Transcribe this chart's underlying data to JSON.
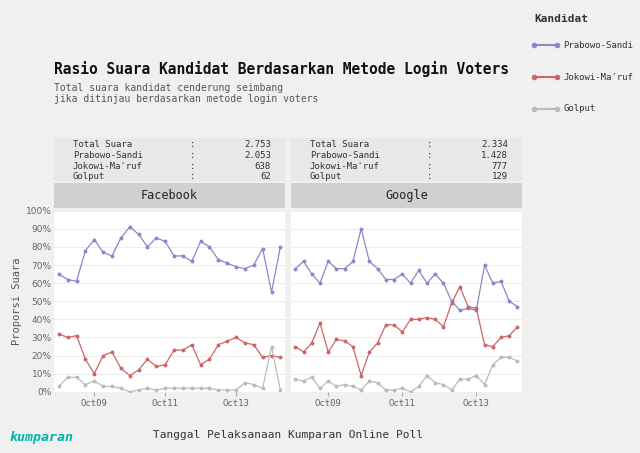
{
  "title": "Rasio Suara Kandidat Berdasarkan Metode Login Voters",
  "subtitle": "Total suara kandidat cenderung seimbang\njika ditinjau berdasarkan metode login voters",
  "xlabel": "Tanggal Pelaksanaan Kumparan Online Poll",
  "ylabel": "Proporsi Suara",
  "legend_title": "Kandidat",
  "legend_labels": [
    "Prabowo-Sandi",
    "Jokowi-Ma'ruf",
    "Golput"
  ],
  "legend_colors": [
    "#8888cc",
    "#cc6666",
    "#bbbbbb"
  ],
  "fb_label": "Facebook",
  "google_label": "Google",
  "fb_stats": {
    "Total Suara": "2.753",
    "Prabowo-Sandi": "2.053",
    "Jokowi-Ma'ruf": "638",
    "Golput": "62"
  },
  "google_stats": {
    "Total Suara": "2.334",
    "Prabowo-Sandi": "1.428",
    "Jokowi-Ma'ruf": "777",
    "Golput": "129"
  },
  "fb_prabowo": [
    65,
    62,
    61,
    78,
    84,
    77,
    75,
    85,
    91,
    87,
    80,
    85,
    83,
    75,
    75,
    72,
    83,
    80,
    73,
    71,
    69,
    68,
    70,
    79,
    55,
    80
  ],
  "fb_jokowi": [
    32,
    30,
    31,
    18,
    10,
    20,
    22,
    13,
    9,
    12,
    18,
    14,
    15,
    23,
    23,
    26,
    15,
    18,
    26,
    28,
    30,
    27,
    26,
    19,
    20,
    19
  ],
  "fb_golput": [
    3,
    8,
    8,
    4,
    6,
    3,
    3,
    2,
    0,
    1,
    2,
    1,
    2,
    2,
    2,
    2,
    2,
    2,
    1,
    1,
    1,
    5,
    4,
    2,
    25,
    1
  ],
  "google_prabowo": [
    68,
    72,
    65,
    60,
    72,
    68,
    68,
    72,
    90,
    72,
    68,
    62,
    62,
    65,
    60,
    67,
    60,
    65,
    60,
    50,
    45,
    46,
    45,
    70,
    60,
    61,
    50,
    47
  ],
  "google_jokowi": [
    25,
    22,
    27,
    38,
    22,
    29,
    28,
    25,
    9,
    22,
    27,
    37,
    37,
    33,
    40,
    40,
    41,
    40,
    36,
    49,
    58,
    47,
    46,
    26,
    25,
    30,
    31,
    36
  ],
  "google_golput": [
    7,
    6,
    8,
    2,
    6,
    3,
    4,
    3,
    1,
    6,
    5,
    1,
    1,
    2,
    0,
    3,
    9,
    5,
    4,
    1,
    7,
    7,
    9,
    4,
    15,
    19,
    19,
    17
  ],
  "fb_n": 26,
  "google_n": 28,
  "fb_oct09_idx": 4,
  "fb_oct11_idx": 12,
  "fb_oct13_idx": 20,
  "google_oct09_idx": 4,
  "google_oct11_idx": 13,
  "google_oct13_idx": 22,
  "bg_color": "#f0f0f0",
  "plot_bg": "#ffffff",
  "title_color": "#111111",
  "subtitle_color": "#555555",
  "tick_color": "#666666",
  "grid_color": "#dddddd",
  "header_bg": "#d0d0d0",
  "stats_bg": "#e8e8e8",
  "kumparan_color": "#00b4ab"
}
